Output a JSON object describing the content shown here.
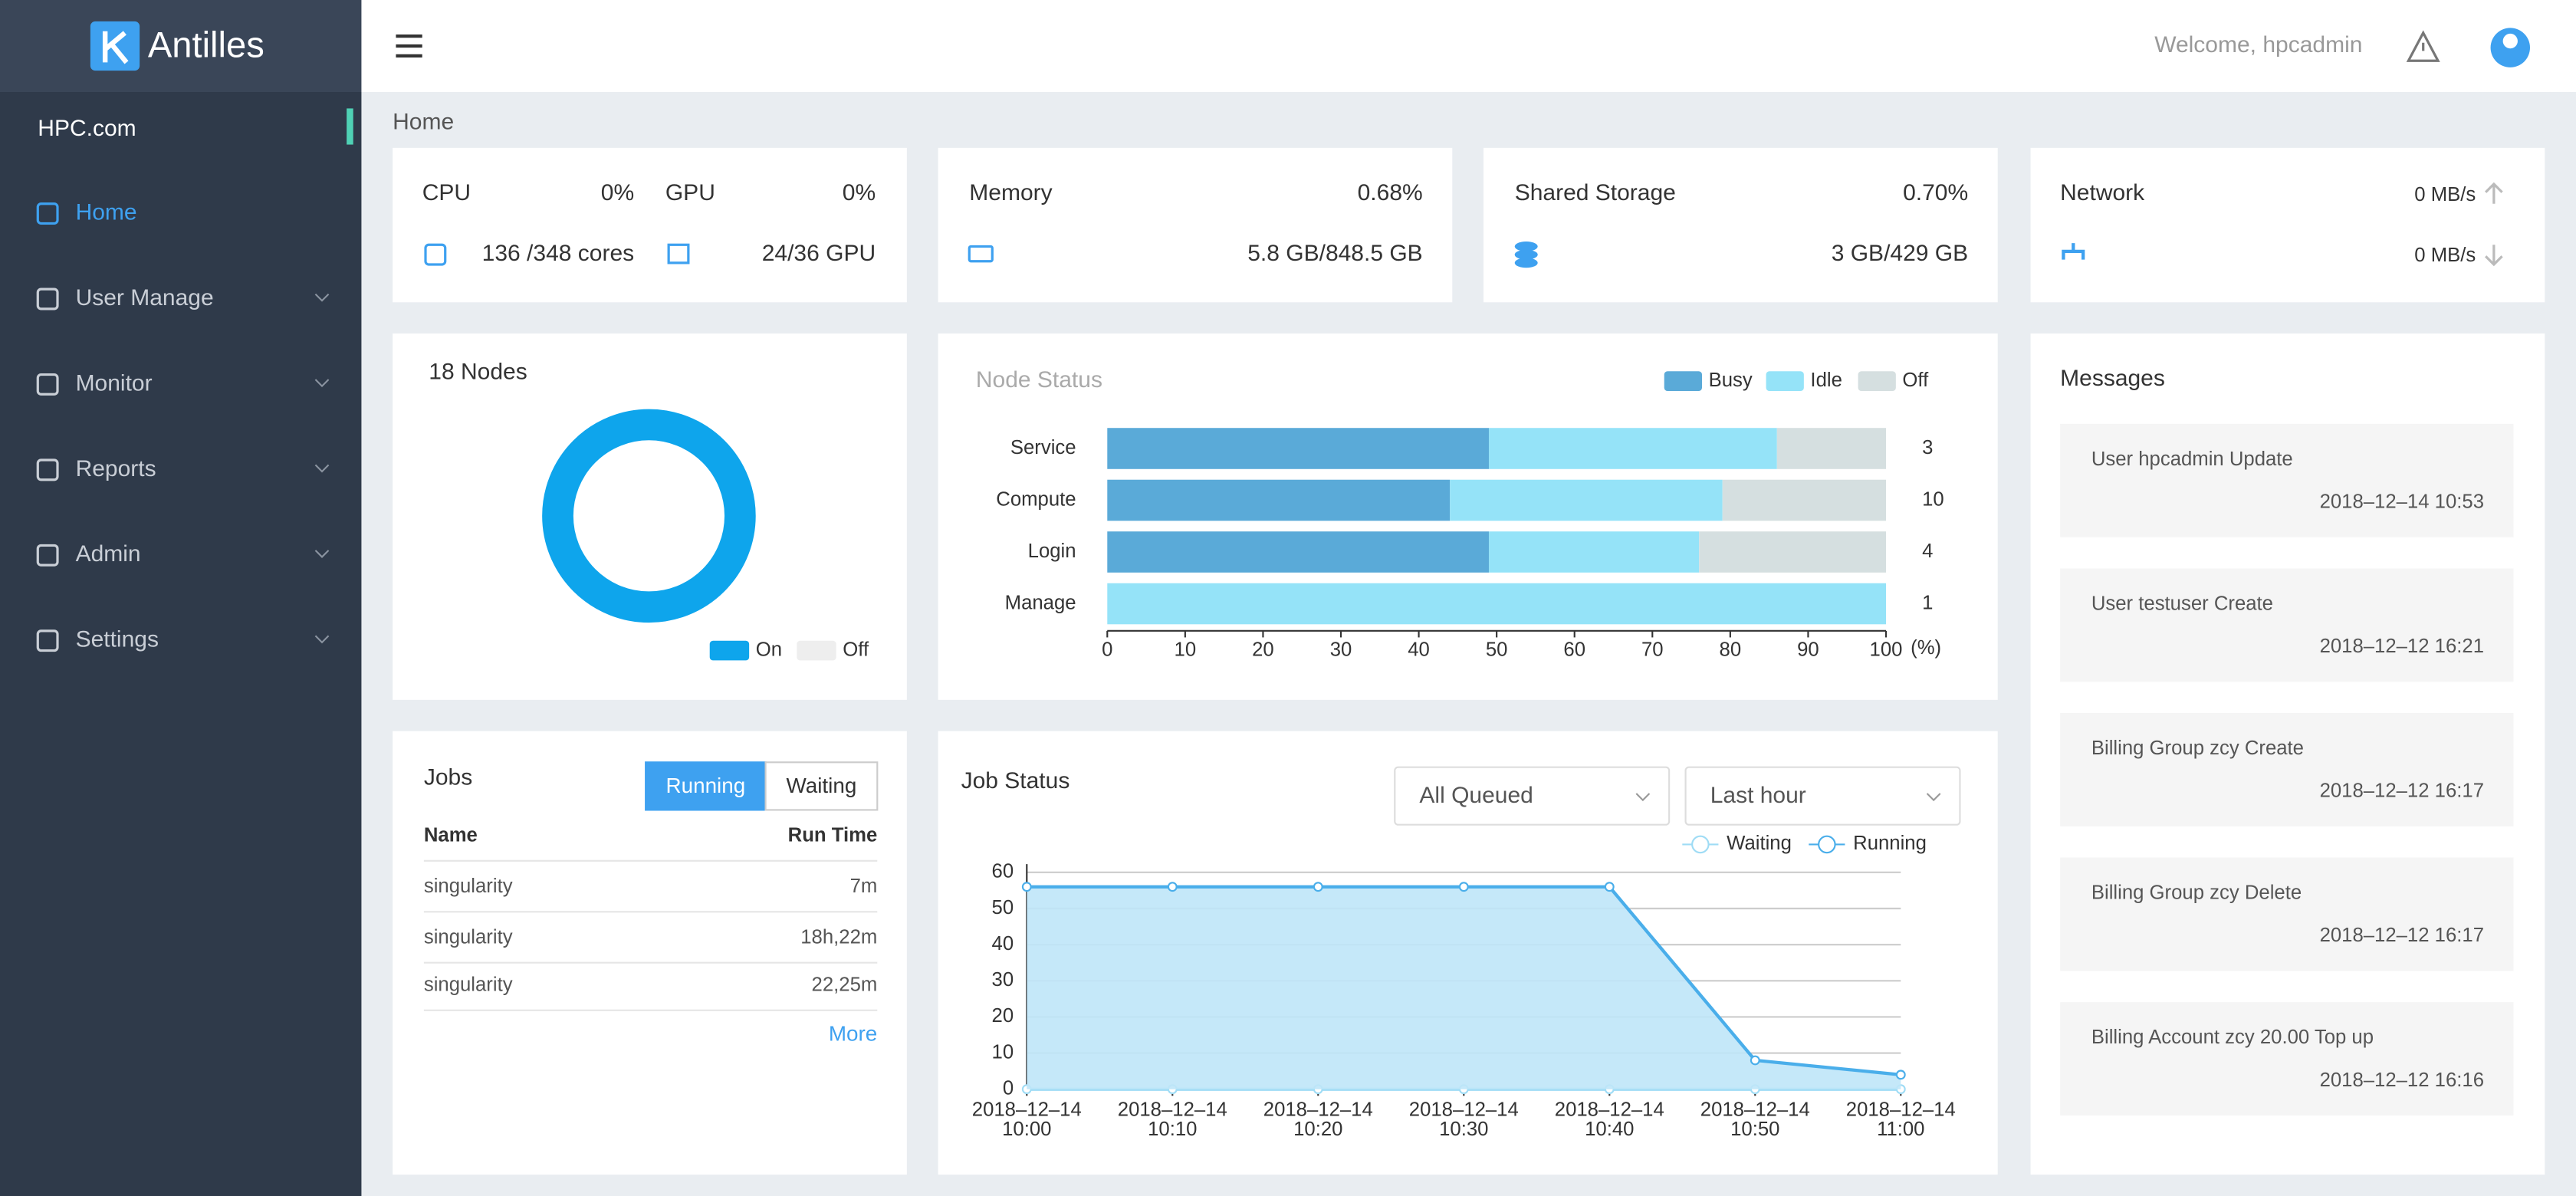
{
  "header": {
    "brand": "Antilles",
    "welcome": "Welcome, hpcadmin"
  },
  "sidebar": {
    "cluster": "HPC.com",
    "menu": [
      {
        "label": "Home",
        "active": true
      },
      {
        "label": "User Manage",
        "active": false
      },
      {
        "label": "Monitor",
        "active": false
      },
      {
        "label": "Reports",
        "active": false
      },
      {
        "label": "Admin",
        "active": false
      },
      {
        "label": "Settings",
        "active": false
      }
    ]
  },
  "breadcrumb": "Home",
  "cpu_gpu": {
    "cpu_label": "CPU",
    "cpu_percent": "0%",
    "cpu_cores": "136 /348 cores",
    "gpu_label": "GPU",
    "gpu_percent": "0%",
    "gpu_count": "24/36 GPU"
  },
  "memory": {
    "label": "Memory",
    "percent": "0.68%",
    "usage": "5.8 GB/848.5 GB"
  },
  "storage": {
    "label": "Shared Storage",
    "percent": "0.70%",
    "usage": "3 GB/429 GB"
  },
  "network": {
    "label": "Network",
    "upload": "0 MB/s",
    "download": "0 MB/s"
  },
  "nodes": {
    "type": "pie",
    "title": "18 Nodes",
    "categories": [
      "On",
      "Off"
    ],
    "values": [
      18,
      0
    ],
    "colors": [
      "#0ea5ec",
      "#eeeeee"
    ]
  },
  "node_status": {
    "type": "bar",
    "title": "Node Status",
    "categories": [
      "Service",
      "Compute",
      "Login",
      "Manage"
    ],
    "series": [
      {
        "name": "Busy",
        "color": "#5aaad8",
        "values": [
          49,
          44,
          49,
          0
        ]
      },
      {
        "name": "Idle",
        "color": "#95e3f8",
        "values": [
          37,
          35,
          27,
          100
        ]
      },
      {
        "name": "Off",
        "color": "#d5dfe0",
        "values": [
          14,
          21,
          24,
          0
        ]
      }
    ],
    "totals": [
      3,
      10,
      4,
      1
    ],
    "xlim": [
      0,
      100
    ],
    "xticks": [
      0,
      10,
      20,
      30,
      40,
      50,
      60,
      70,
      80,
      90,
      100
    ],
    "xlabel": "(%)"
  },
  "jobs": {
    "title": "Jobs",
    "tabs": [
      {
        "label": "Running",
        "active": true
      },
      {
        "label": "Waiting",
        "active": false
      }
    ],
    "columns": [
      "Name",
      "Run Time"
    ],
    "rows": [
      [
        "singularity",
        "7m"
      ],
      [
        "singularity",
        "18h,22m"
      ],
      [
        "singularity",
        "22,25m"
      ]
    ],
    "more": "More"
  },
  "job_status": {
    "type": "line",
    "title": "Job Status",
    "filters": [
      "All Queued",
      "Last hour"
    ],
    "categories": [
      [
        "2018–12–14",
        "10:00"
      ],
      [
        "2018–12–14",
        "10:10"
      ],
      [
        "2018–12–14",
        "10:20"
      ],
      [
        "2018–12–14",
        "10:30"
      ],
      [
        "2018–12–14",
        "10:40"
      ],
      [
        "2018–12–14",
        "10:50"
      ],
      [
        "2018–12–14",
        "11:00"
      ]
    ],
    "series": [
      {
        "name": "Waiting",
        "color": "#9fdcf5",
        "values": [
          0,
          0,
          0,
          0,
          0,
          0,
          0
        ]
      },
      {
        "name": "Running",
        "color": "#4aaeea",
        "values": [
          56,
          56,
          56,
          56,
          56,
          8,
          4
        ]
      }
    ],
    "ylim": [
      0,
      60
    ],
    "yticks": [
      0,
      10,
      20,
      30,
      40,
      50,
      60
    ],
    "grid": true
  },
  "messages": {
    "title": "Messages",
    "items": [
      {
        "text": "User hpcadmin Update",
        "time": "2018–12–14 10:53"
      },
      {
        "text": "User testuser Create",
        "time": "2018–12–12 16:21"
      },
      {
        "text": "Billing Group zcy Create",
        "time": "2018–12–12 16:17"
      },
      {
        "text": "Billing Group zcy Delete",
        "time": "2018–12–12 16:17"
      },
      {
        "text": "Billing Account zcy 20.00 Top up",
        "time": "2018–12–12 16:16"
      }
    ]
  }
}
